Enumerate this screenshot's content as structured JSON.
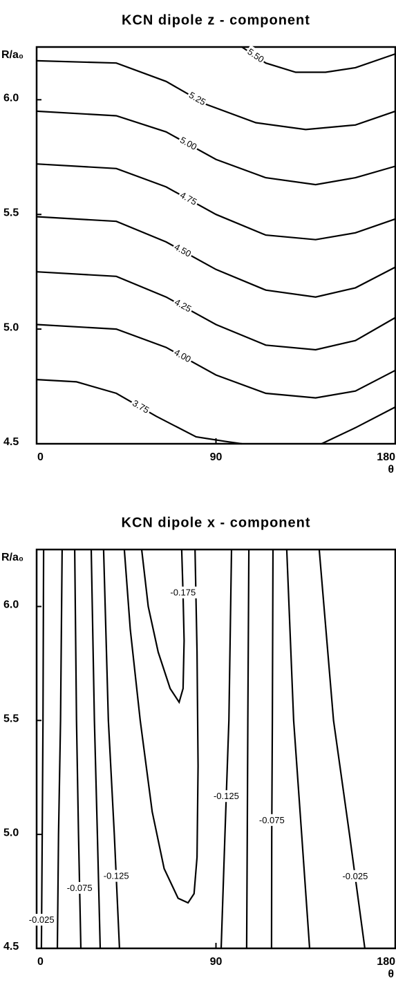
{
  "chart_data": [
    {
      "type": "contour",
      "title": "KCN dipole z - component",
      "ylabel": "R/a₀",
      "xlabel": "θ",
      "xlim": [
        0,
        180
      ],
      "ylim": [
        4.5,
        6.23
      ],
      "xticks": [
        0,
        90,
        180
      ],
      "yticks": [
        {
          "value": 6,
          "label": "6.0"
        },
        5.5,
        {
          "value": 5,
          "label": "5.0"
        },
        4.5
      ],
      "color": "#000000",
      "contours": [
        {
          "label": "5.50",
          "x": [
            103,
            115,
            130,
            145,
            160,
            180
          ],
          "y": [
            6.23,
            6.16,
            6.12,
            6.12,
            6.14,
            6.2
          ]
        },
        {
          "label": "5.25",
          "x": [
            0,
            40,
            65,
            85,
            110,
            135,
            160,
            180
          ],
          "y": [
            6.17,
            6.16,
            6.08,
            5.98,
            5.9,
            5.87,
            5.89,
            5.95
          ]
        },
        {
          "label": "5.00",
          "x": [
            0,
            40,
            65,
            90,
            115,
            140,
            160,
            180
          ],
          "y": [
            5.95,
            5.93,
            5.86,
            5.74,
            5.66,
            5.63,
            5.66,
            5.71
          ]
        },
        {
          "label": "4.75",
          "x": [
            0,
            40,
            65,
            90,
            115,
            140,
            160,
            180
          ],
          "y": [
            5.72,
            5.7,
            5.62,
            5.5,
            5.41,
            5.39,
            5.42,
            5.48
          ]
        },
        {
          "label": "4.50",
          "x": [
            0,
            40,
            65,
            90,
            115,
            140,
            160,
            180
          ],
          "y": [
            5.49,
            5.47,
            5.38,
            5.26,
            5.17,
            5.14,
            5.18,
            5.27
          ]
        },
        {
          "label": "4.25",
          "x": [
            0,
            40,
            65,
            90,
            115,
            140,
            160,
            180
          ],
          "y": [
            5.25,
            5.23,
            5.14,
            5.02,
            4.93,
            4.91,
            4.95,
            5.05
          ]
        },
        {
          "label": "4.00",
          "x": [
            0,
            40,
            65,
            90,
            115,
            140,
            160,
            180
          ],
          "y": [
            5.02,
            5.0,
            4.92,
            4.8,
            4.72,
            4.7,
            4.73,
            4.82
          ]
        },
        {
          "label": "3.75",
          "x": [
            0,
            20,
            40,
            60,
            80,
            95,
            103,
            null,
            143,
            160,
            180
          ],
          "y": [
            4.78,
            4.77,
            4.72,
            4.62,
            4.53,
            4.51,
            4.5,
            null,
            4.5,
            4.57,
            4.66
          ]
        }
      ]
    },
    {
      "type": "contour",
      "title": "KCN dipole x - component",
      "ylabel": "R/a₀",
      "xlabel": "θ",
      "xlim": [
        0,
        180
      ],
      "ylim": [
        4.5,
        6.25
      ],
      "xticks": [
        0,
        90,
        180
      ],
      "yticks": [
        {
          "value": 6,
          "label": "6.0"
        },
        5.5,
        {
          "value": 5,
          "label": "5.0"
        },
        4.5
      ],
      "color": "#000000",
      "contours": [
        {
          "label": "-0.025",
          "x": [
            3.5,
            3.2,
            2.8,
            2.4
          ],
          "y": [
            6.25,
            5.5,
            5.0,
            4.5
          ]
        },
        {
          "x": [
            12.8,
            12,
            11,
            10.4
          ],
          "y": [
            6.25,
            5.5,
            5.0,
            4.5
          ]
        },
        {
          "label": "-0.075",
          "x": [
            19.1,
            20,
            21,
            22.2
          ],
          "y": [
            6.25,
            5.5,
            5.0,
            4.5
          ]
        },
        {
          "x": [
            27.4,
            29,
            30.5,
            31.9
          ],
          "y": [
            6.25,
            5.5,
            5.0,
            4.5
          ]
        },
        {
          "label": "-0.125",
          "x": [
            33.6,
            36,
            39,
            41.6
          ],
          "y": [
            6.25,
            5.5,
            5.0,
            4.5
          ]
        },
        {
          "x": [
            44,
            47,
            52,
            58,
            64,
            71,
            76,
            79,
            80.5,
            81,
            80.5,
            79.5
          ],
          "y": [
            6.25,
            5.9,
            5.5,
            5.1,
            4.85,
            4.72,
            4.7,
            4.74,
            4.9,
            5.3,
            5.8,
            6.25
          ]
        },
        {
          "label": "-0.175",
          "x": [
            52.7,
            56,
            61,
            67,
            71.5,
            73.5,
            74,
            73.5,
            72.8
          ],
          "y": [
            6.25,
            6.0,
            5.8,
            5.64,
            5.58,
            5.64,
            5.85,
            6.05,
            6.25
          ]
        },
        {
          "label": "-0.125",
          "x": [
            97.8,
            96.5,
            94.5,
            92.6
          ],
          "y": [
            6.25,
            5.5,
            5.0,
            4.5
          ]
        },
        {
          "x": [
            106.5,
            106,
            105.7,
            105.4
          ],
          "y": [
            6.25,
            5.5,
            5.0,
            4.5
          ]
        },
        {
          "label": "-0.075",
          "x": [
            118.6,
            118.3,
            118,
            117.9
          ],
          "y": [
            6.25,
            5.5,
            5.0,
            4.5
          ]
        },
        {
          "x": [
            125.5,
            129,
            133,
            137
          ],
          "y": [
            6.25,
            5.5,
            5.0,
            4.5
          ]
        },
        {
          "label": "-0.025",
          "x": [
            141.8,
            149,
            157,
            164.7
          ],
          "y": [
            6.25,
            5.5,
            5.0,
            4.5
          ]
        }
      ]
    }
  ]
}
